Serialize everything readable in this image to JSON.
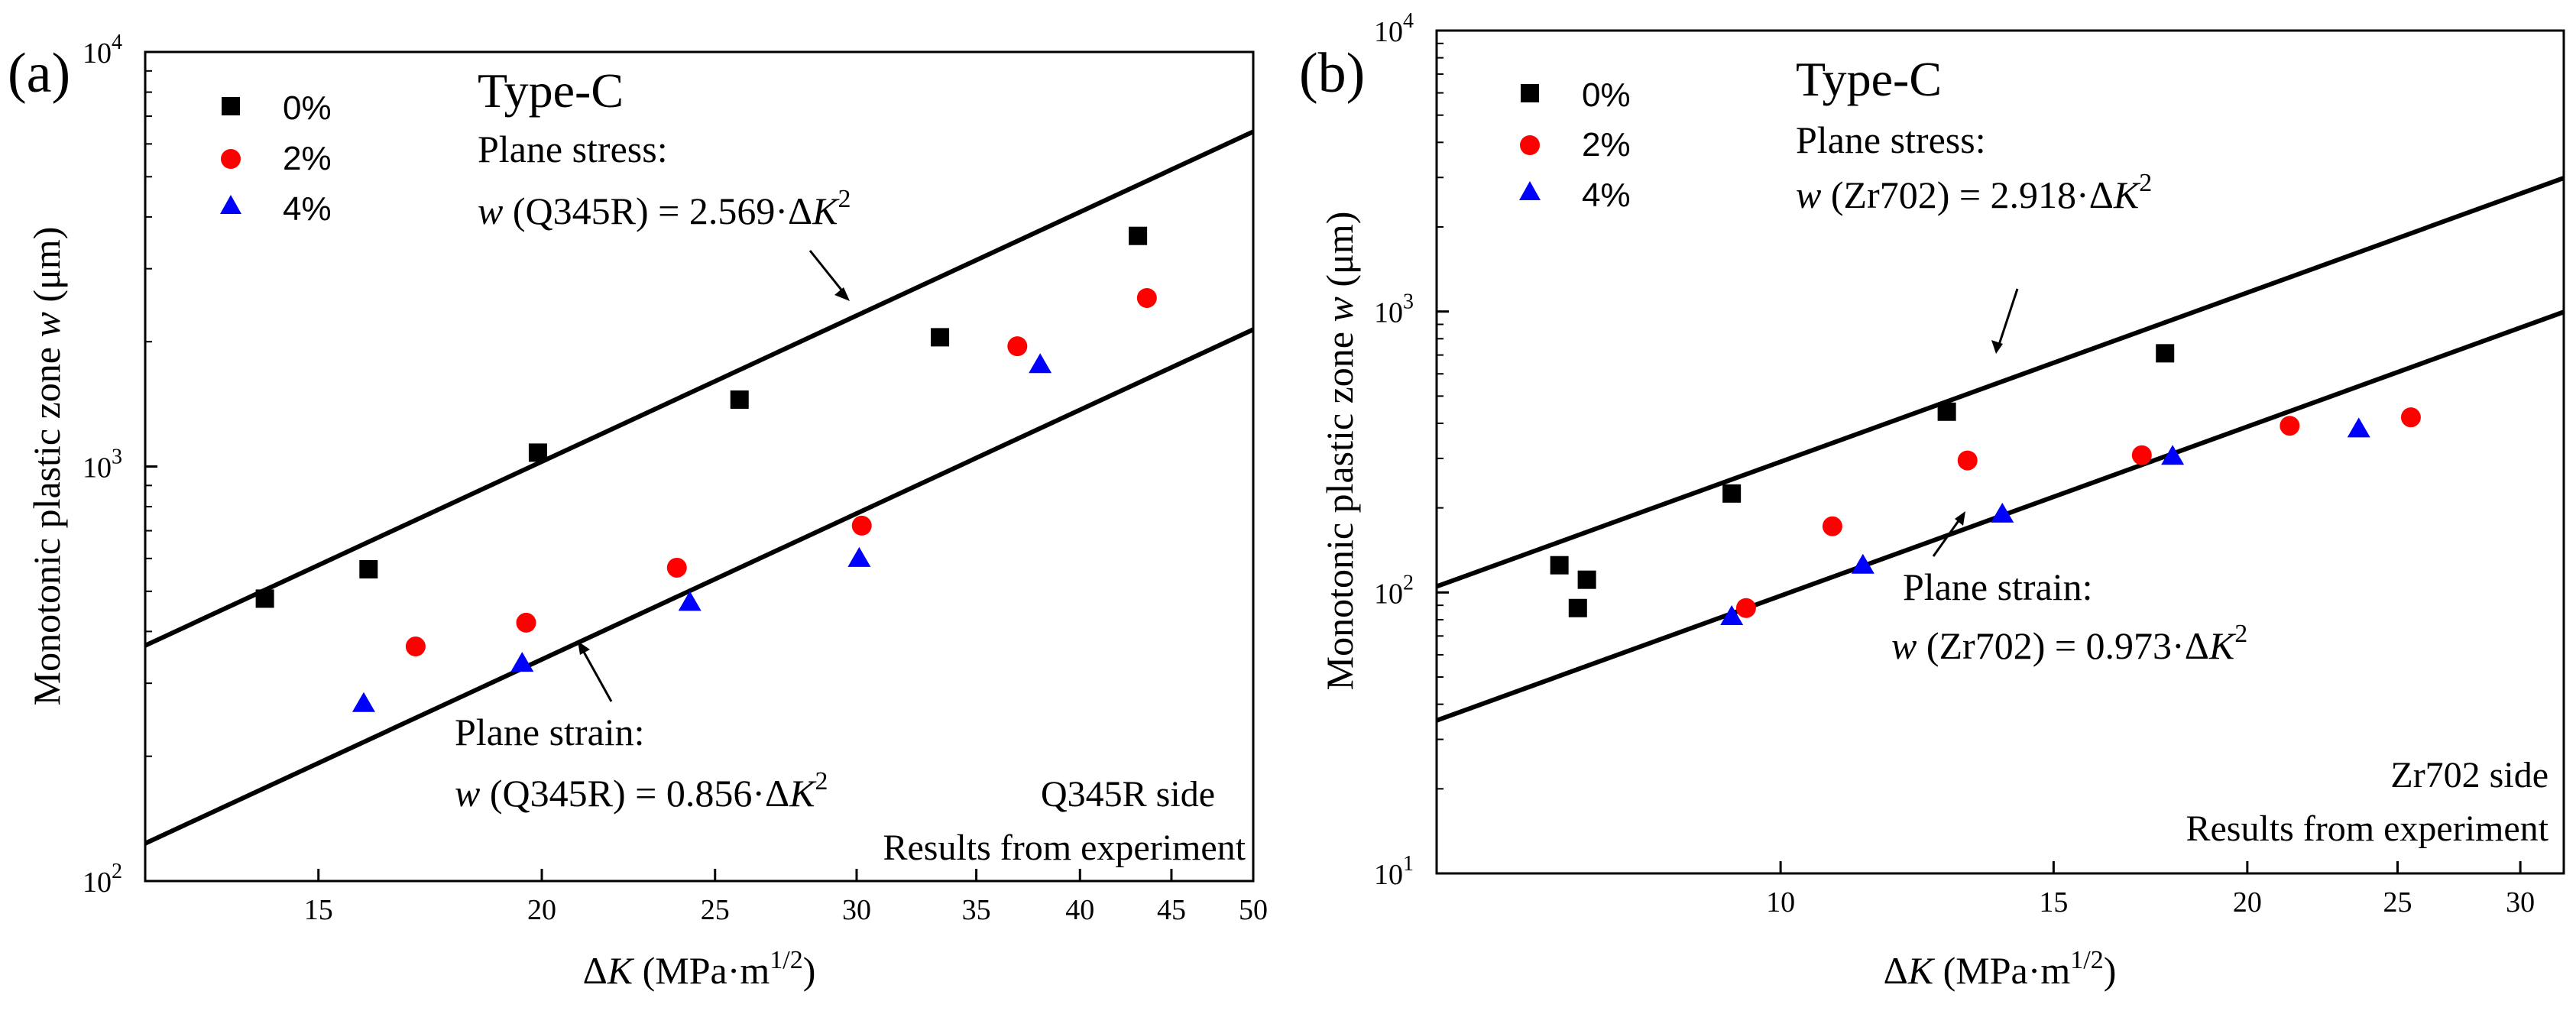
{
  "chart_data": [
    {
      "panel": "(a)",
      "type": "scatter",
      "title": "Type-C",
      "xlabel": {
        "prefix": "Δ",
        "italic": "K",
        "rest": " (MPa·m",
        "sup": "1/2",
        "close": ")"
      },
      "ylabel": {
        "prefix": "Monotonic plastic zone ",
        "italic": "w",
        "rest": " (μm)"
      },
      "x_scale": "log",
      "y_scale": "log",
      "xlim": [
        12,
        50
      ],
      "ylim": [
        100,
        10000
      ],
      "x_ticks": [
        15,
        20,
        25,
        30,
        35,
        40,
        45,
        50
      ],
      "y_ticks": [
        {
          "value": 100,
          "label": "10",
          "exp": "2"
        },
        {
          "value": 1000,
          "label": "10",
          "exp": "3"
        },
        {
          "value": 10000,
          "label": "10",
          "exp": "4"
        }
      ],
      "legend": {
        "position": "top-left",
        "entries": [
          {
            "name": "0%",
            "marker": "square",
            "color": "#000000"
          },
          {
            "name": "2%",
            "marker": "circle",
            "color": "#ff0000"
          },
          {
            "name": "4%",
            "marker": "triangle",
            "color": "#0000ff"
          }
        ]
      },
      "series": [
        {
          "name": "0%",
          "x": [
            14.0,
            16.0,
            19.9,
            25.8,
            33.4,
            43.1
          ],
          "y": [
            480,
            565,
            1080,
            1450,
            2050,
            3600
          ]
        },
        {
          "name": "2%",
          "x": [
            17.0,
            19.6,
            23.8,
            30.2,
            36.9,
            43.6
          ],
          "y": [
            368,
            420,
            570,
            720,
            1950,
            2550
          ]
        },
        {
          "name": "4%",
          "x": [
            15.9,
            19.5,
            24.2,
            30.1,
            38.0
          ],
          "y": [
            268,
            335,
            470,
            600,
            1760
          ]
        }
      ],
      "fit_lines": [
        {
          "name": "Plane stress",
          "coef": 2.569,
          "x_range": [
            12,
            50
          ]
        },
        {
          "name": "Plane strain",
          "coef": 0.856,
          "x_range": [
            12,
            50
          ]
        }
      ],
      "annotations": {
        "stress_heading": "Plane stress:",
        "stress_eq": {
          "var": "w",
          "mat": " (Q345R) = 2.569·Δ",
          "k": "K",
          "sup": "2"
        },
        "strain_heading": "Plane strain:",
        "strain_eq": {
          "var": "w",
          "mat": " (Q345R) = 0.856·Δ",
          "k": "K",
          "sup": "2"
        },
        "side": "Q345R side",
        "source": "Results from experiment"
      }
    },
    {
      "panel": "(b)",
      "type": "scatter",
      "title": "Type-C",
      "xlabel": {
        "prefix": "Δ",
        "italic": "K",
        "rest": " (MPa·m",
        "sup": "1/2",
        "close": ")"
      },
      "ylabel": {
        "prefix": "Monotonic plastic zone ",
        "italic": "w",
        "rest": " (μm)"
      },
      "x_scale": "log",
      "y_scale": "log",
      "xlim": [
        6,
        32
      ],
      "ylim": [
        10,
        10000
      ],
      "x_ticks": [
        10,
        15,
        20,
        25,
        30
      ],
      "y_ticks": [
        {
          "value": 10,
          "label": "10",
          "exp": "1"
        },
        {
          "value": 100,
          "label": "10",
          "exp": "2"
        },
        {
          "value": 1000,
          "label": "10",
          "exp": "3"
        },
        {
          "value": 10000,
          "label": "10",
          "exp": "4"
        }
      ],
      "legend": {
        "position": "top-left",
        "entries": [
          {
            "name": "0%",
            "marker": "square",
            "color": "#000000"
          },
          {
            "name": "2%",
            "marker": "circle",
            "color": "#ff0000"
          },
          {
            "name": "4%",
            "marker": "triangle",
            "color": "#0000ff"
          }
        ]
      },
      "series": [
        {
          "name": "0%",
          "x": [
            7.2,
            7.4,
            7.5,
            9.3,
            12.8,
            17.7
          ],
          "y": [
            125,
            88,
            111,
            225,
            440,
            710
          ]
        },
        {
          "name": "2%",
          "x": [
            9.5,
            10.8,
            13.2,
            17.1,
            21.3,
            25.5
          ],
          "y": [
            88,
            172,
            295,
            308,
            392,
            420
          ]
        },
        {
          "name": "4%",
          "x": [
            9.3,
            11.3,
            13.9,
            17.9,
            23.6
          ],
          "y": [
            82,
            125,
            190,
            305,
            382
          ]
        }
      ],
      "fit_lines": [
        {
          "name": "Plane stress",
          "coef": 2.918,
          "x_range": [
            6,
            32
          ]
        },
        {
          "name": "Plane strain",
          "coef": 0.973,
          "x_range": [
            6,
            32
          ]
        }
      ],
      "annotations": {
        "stress_heading": "Plane stress:",
        "stress_eq": {
          "var": "w",
          "mat": " (Zr702) = 2.918·Δ",
          "k": "K",
          "sup": "2"
        },
        "strain_heading": "Plane strain:",
        "strain_eq": {
          "var": "w",
          "mat": " (Zr702) = 0.973·Δ",
          "k": "K",
          "sup": "2"
        },
        "side": "Zr702 side",
        "source": "Results from experiment"
      }
    }
  ]
}
